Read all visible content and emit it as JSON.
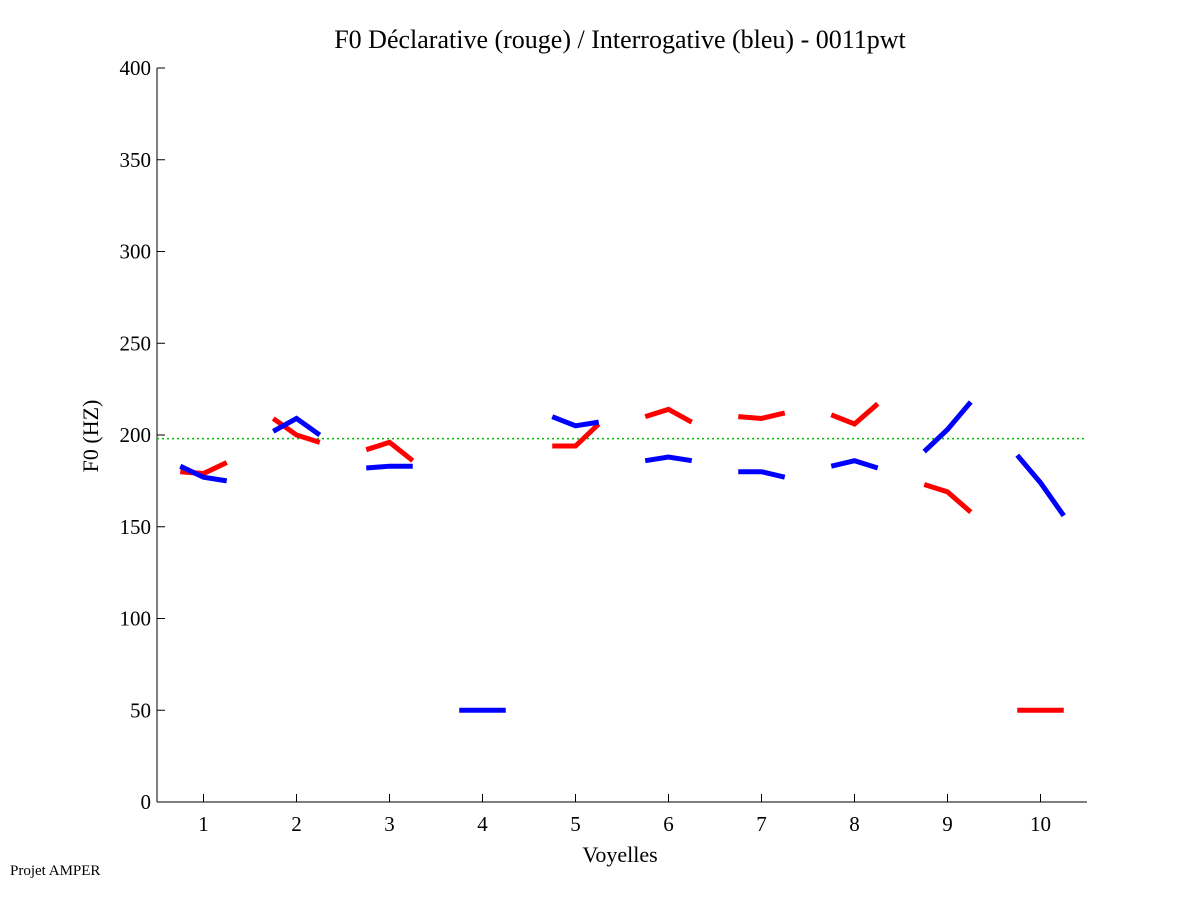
{
  "footer_text": "Projet AMPER",
  "colors": {
    "declarative": "#ff0000",
    "interrogative": "#0000ff",
    "reference": "#00bb00",
    "axis": "#000000"
  },
  "chart_data": {
    "type": "line",
    "title": "F0 Déclarative (rouge) / Interrogative (bleu) - 0011pwt",
    "xlabel": "Voyelles",
    "ylabel": "F0 (HZ)",
    "xlim": [
      0.5,
      10.5
    ],
    "ylim": [
      0,
      400
    ],
    "xticks": [
      1,
      2,
      3,
      4,
      5,
      6,
      7,
      8,
      9,
      10
    ],
    "yticks": [
      0,
      50,
      100,
      150,
      200,
      250,
      300,
      350,
      400
    ],
    "reference_line": {
      "y": 198,
      "style": "dotted"
    },
    "series": [
      {
        "name": "Déclarative (rouge)",
        "color": "#ff0000",
        "segments": [
          {
            "vowel": 1,
            "values": [
              180,
              179,
              185
            ]
          },
          {
            "vowel": 2,
            "values": [
              209,
              200,
              196
            ]
          },
          {
            "vowel": 3,
            "values": [
              192,
              196,
              186
            ]
          },
          {
            "vowel": 5,
            "values": [
              194,
              194,
              206
            ]
          },
          {
            "vowel": 6,
            "values": [
              210,
              214,
              207
            ]
          },
          {
            "vowel": 7,
            "values": [
              210,
              209,
              212
            ]
          },
          {
            "vowel": 8,
            "values": [
              211,
              206,
              217
            ]
          },
          {
            "vowel": 9,
            "values": [
              173,
              169,
              158
            ]
          },
          {
            "vowel": 10,
            "values": [
              50,
              50,
              50
            ]
          }
        ]
      },
      {
        "name": "Interrogative (bleu)",
        "color": "#0000ff",
        "segments": [
          {
            "vowel": 1,
            "values": [
              183,
              177,
              175
            ]
          },
          {
            "vowel": 2,
            "values": [
              202,
              209,
              200
            ]
          },
          {
            "vowel": 3,
            "values": [
              182,
              183,
              183
            ]
          },
          {
            "vowel": 4,
            "values": [
              50,
              50,
              50
            ]
          },
          {
            "vowel": 5,
            "values": [
              210,
              205,
              207
            ]
          },
          {
            "vowel": 6,
            "values": [
              186,
              188,
              186
            ]
          },
          {
            "vowel": 7,
            "values": [
              180,
              180,
              177
            ]
          },
          {
            "vowel": 8,
            "values": [
              183,
              186,
              182
            ]
          },
          {
            "vowel": 9,
            "values": [
              191,
              203,
              218
            ]
          },
          {
            "vowel": 10,
            "values": [
              189,
              174,
              156
            ]
          }
        ]
      }
    ]
  }
}
